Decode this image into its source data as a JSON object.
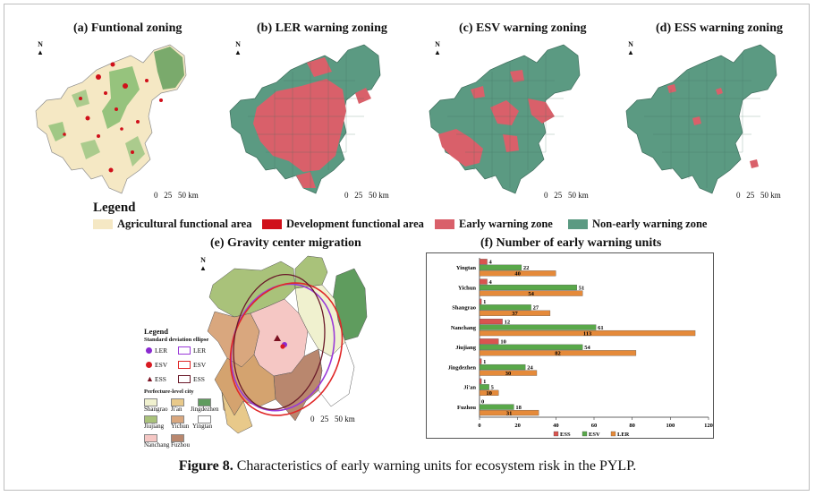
{
  "panels": [
    {
      "title": "(a) Funtional zoning"
    },
    {
      "title": "(b) LER warning zoning"
    },
    {
      "title": "(c) ESV warning zoning"
    },
    {
      "title": "(d) ESS warning zoning"
    }
  ],
  "north_label": "N",
  "scale": {
    "zero": "0",
    "mid": "25",
    "end": "50 km"
  },
  "legend": {
    "title": "Legend",
    "items": [
      {
        "label": "Agricultural functional area",
        "color": "#f5e8c4"
      },
      {
        "label": "Development functional area",
        "color": "#d0101a"
      },
      {
        "label": "Early warning zone",
        "color": "#d9606a"
      },
      {
        "label": "Non-early warning zone",
        "color": "#5b9a82"
      }
    ]
  },
  "gravity": {
    "title": "(e) Gravity center migration",
    "legend_title": "Legend",
    "ellipse_header": "Standard deviation ellipse",
    "points": [
      {
        "label": "LER",
        "color": "#8a2ad0",
        "shape": "circle"
      },
      {
        "label": "ESV",
        "color": "#d81b22",
        "shape": "circle"
      },
      {
        "label": "ESS",
        "color": "#7a1020",
        "shape": "triangle"
      }
    ],
    "ellipses": [
      {
        "label": "LER",
        "color": "#9a3ad8"
      },
      {
        "label": "ESV",
        "color": "#e02828"
      },
      {
        "label": "ESS",
        "color": "#6a1a2a"
      }
    ],
    "city_header": "Perfecture-level city",
    "cities": [
      {
        "name": "Shangrao",
        "color": "#f0f1cf"
      },
      {
        "name": "Ji'an",
        "color": "#e8c98a"
      },
      {
        "name": "Jingdezhen",
        "color": "#5f9c5e"
      },
      {
        "name": "Jiujiang",
        "color": "#a9c27a"
      },
      {
        "name": "Yichun",
        "color": "#d9a77e"
      },
      {
        "name": "Yingtan",
        "color": "#ffffff"
      },
      {
        "name": "Nanchang",
        "color": "#f5c7c4"
      },
      {
        "name": "Fuzhou",
        "color": "#b9876e"
      }
    ]
  },
  "chart_data": {
    "type": "bar",
    "title": "(f) Number of early warning units",
    "orientation": "horizontal",
    "categories": [
      "Yingtan",
      "Yichun",
      "Shangrao",
      "Nanchang",
      "Jiujiang",
      "Jingdezhen",
      "Ji'an",
      "Fuzhou"
    ],
    "series": [
      {
        "name": "ESS",
        "color": "#d9544f",
        "values": [
          4,
          4,
          1,
          12,
          10,
          1,
          1,
          0
        ]
      },
      {
        "name": "ESV",
        "color": "#59a84a",
        "values": [
          22,
          51,
          27,
          61,
          54,
          24,
          5,
          18
        ]
      },
      {
        "name": "LER",
        "color": "#e58a3a",
        "values": [
          40,
          54,
          37,
          113,
          82,
          30,
          10,
          31
        ]
      }
    ],
    "xlim": [
      0,
      120
    ],
    "xticks": [
      0,
      20,
      40,
      60,
      80,
      100,
      120
    ],
    "legend_position": "bottom"
  },
  "caption": {
    "label": "Figure 8.",
    "text": " Characteristics of early warning units for ecosystem risk in the PYLP."
  }
}
